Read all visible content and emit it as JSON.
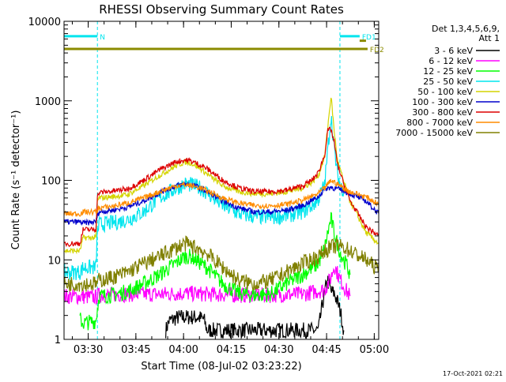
{
  "footer": {
    "date_stamp": "17-Oct-2021 02:21"
  },
  "chart_data": {
    "type": "line",
    "title": "RHESSI Observing Summary Count Rates",
    "xlabel": "Start Time (08-Jul-02 03:23:22)",
    "ylabel": "Count Rate (s⁻¹ detector⁻¹)",
    "x_unit": "minutes since 03:23:22",
    "xlim": [
      0,
      99
    ],
    "ylim": [
      1,
      10000
    ],
    "y_scale": "log",
    "x_ticks": [
      {
        "x": 7.6,
        "label": "03:30"
      },
      {
        "x": 22.6,
        "label": "03:45"
      },
      {
        "x": 37.6,
        "label": "04:00"
      },
      {
        "x": 52.6,
        "label": "04:15"
      },
      {
        "x": 67.6,
        "label": "04:30"
      },
      {
        "x": 82.6,
        "label": "04:45"
      },
      {
        "x": 97.6,
        "label": "05:00"
      }
    ],
    "y_ticks": [
      {
        "y": 1,
        "label": "1"
      },
      {
        "y": 10,
        "label": "10"
      },
      {
        "y": 100,
        "label": "100"
      },
      {
        "y": 1000,
        "label": "1000"
      },
      {
        "y": 10000,
        "label": "10000"
      }
    ],
    "legend": {
      "placement": "right",
      "header": [
        "Det 1,3,4,5,6,9,",
        "Att 1"
      ]
    },
    "eclipse_intervals": [
      [
        0,
        10.5
      ],
      [
        86.8,
        99
      ]
    ],
    "flag_bars": [
      {
        "label": "N",
        "x": [
          0,
          10.5
        ],
        "y": 6500,
        "color": "#00e5ee"
      },
      {
        "label": "FD1",
        "x": [
          86.8,
          93
        ],
        "y": 6500,
        "color": "#00e5ee"
      },
      {
        "label": "",
        "x": [
          93,
          95
        ],
        "y": 5700,
        "color": "#8b8b00"
      },
      {
        "label": "FD2",
        "x": [
          0,
          95.5
        ],
        "y": 4500,
        "color": "#8b8b00"
      }
    ],
    "series": [
      {
        "name": "3 - 6 keV",
        "color": "#000000",
        "x": [
          32,
          33,
          36,
          38,
          40,
          42,
          44,
          45,
          80,
          81,
          82,
          83,
          84,
          85,
          86,
          87,
          88
        ],
        "y": [
          1.3,
          1.7,
          1.9,
          1.9,
          1.9,
          1.9,
          1.8,
          1.3,
          1.3,
          2.3,
          4.0,
          5.5,
          4.0,
          3.8,
          3.0,
          2.2,
          1.3
        ]
      },
      {
        "name": "6 - 12 keV",
        "color": "#ff00ff",
        "x": [
          0,
          10,
          11,
          20,
          30,
          38,
          45,
          55,
          65,
          75,
          82,
          84,
          85,
          87,
          89,
          90
        ],
        "y": [
          3.5,
          3.4,
          3.6,
          3.7,
          3.7,
          3.8,
          3.7,
          3.6,
          3.6,
          3.7,
          4.2,
          6.0,
          8.5,
          5.5,
          4.0,
          3.5
        ]
      },
      {
        "name": "12 - 25 keV",
        "color": "#00ff00",
        "x": [
          5,
          6,
          10,
          11,
          15,
          20,
          25,
          30,
          35,
          38,
          40,
          45,
          50,
          55,
          60,
          65,
          70,
          75,
          80,
          82,
          83,
          84,
          85,
          86,
          87,
          88,
          89,
          90
        ],
        "y": [
          1.8,
          1.6,
          1.7,
          3.5,
          3.6,
          4.0,
          5.0,
          6.5,
          9.0,
          11.0,
          11.0,
          8.0,
          5.0,
          3.8,
          3.6,
          3.7,
          5.0,
          6.5,
          9.0,
          14.0,
          22.0,
          33.0,
          22.0,
          16.0,
          12.0,
          10.0,
          8.5,
          6.5
        ]
      },
      {
        "name": "25 - 50 keV",
        "color": "#00e5ee",
        "x": [
          0,
          5,
          6,
          10,
          10.5,
          11,
          15,
          20,
          25,
          30,
          35,
          38,
          40,
          43,
          45,
          50,
          55,
          60,
          65,
          70,
          75,
          78,
          80,
          82,
          83,
          84,
          85,
          86,
          87,
          88
        ],
        "y": [
          7,
          7,
          8,
          8,
          22,
          28,
          29,
          32,
          40,
          60,
          78,
          90,
          88,
          80,
          70,
          48,
          38,
          35,
          34,
          36,
          40,
          48,
          58,
          90,
          250,
          650,
          250,
          120,
          85,
          75
        ]
      },
      {
        "name": "50 - 100 keV",
        "color": "#d4d400",
        "x": [
          0,
          5,
          6,
          10,
          10.5,
          11,
          15,
          20,
          25,
          30,
          35,
          38,
          40,
          43,
          45,
          50,
          55,
          60,
          65,
          70,
          75,
          78,
          80,
          82,
          83,
          84,
          85,
          86,
          88,
          90,
          95,
          99
        ],
        "y": [
          13,
          13,
          19,
          19,
          55,
          60,
          62,
          66,
          85,
          115,
          150,
          170,
          165,
          140,
          120,
          85,
          72,
          68,
          68,
          72,
          80,
          95,
          115,
          200,
          480,
          1150,
          420,
          180,
          95,
          55,
          22,
          16
        ]
      },
      {
        "name": "100 - 300 keV",
        "color": "#0000cc",
        "x": [
          0,
          5,
          6,
          10,
          10.5,
          11,
          15,
          20,
          25,
          30,
          35,
          38,
          40,
          43,
          45,
          50,
          55,
          60,
          65,
          70,
          75,
          80,
          82,
          84,
          86,
          88,
          90,
          95,
          99
        ],
        "y": [
          30,
          30,
          29,
          30,
          36,
          40,
          42,
          46,
          55,
          70,
          85,
          90,
          88,
          80,
          72,
          55,
          45,
          40,
          40,
          42,
          48,
          62,
          78,
          82,
          78,
          74,
          68,
          55,
          38
        ]
      },
      {
        "name": "300 - 800 keV",
        "color": "#dd0000",
        "x": [
          0,
          5,
          6,
          10,
          10.5,
          11,
          15,
          20,
          25,
          30,
          35,
          38,
          40,
          43,
          45,
          50,
          55,
          60,
          65,
          70,
          75,
          78,
          80,
          82,
          83,
          84,
          85,
          86,
          88,
          90,
          95,
          99
        ],
        "y": [
          16,
          16,
          24,
          24,
          62,
          70,
          73,
          78,
          100,
          135,
          170,
          180,
          175,
          155,
          140,
          100,
          80,
          72,
          72,
          75,
          85,
          100,
          125,
          210,
          420,
          440,
          300,
          160,
          90,
          55,
          26,
          20
        ]
      },
      {
        "name": "800 - 7000 keV",
        "color": "#ff8c00",
        "x": [
          0,
          5,
          6,
          10,
          10.5,
          11,
          15,
          20,
          25,
          30,
          35,
          38,
          40,
          43,
          45,
          50,
          55,
          60,
          65,
          70,
          75,
          80,
          82,
          84,
          86,
          88,
          90,
          95,
          99
        ],
        "y": [
          38,
          38,
          40,
          40,
          42,
          45,
          47,
          52,
          60,
          72,
          85,
          88,
          86,
          80,
          74,
          60,
          52,
          48,
          48,
          50,
          56,
          68,
          80,
          100,
          90,
          80,
          72,
          62,
          50
        ]
      },
      {
        "name": "7000 - 15000 keV",
        "color": "#808000",
        "x": [
          0,
          10,
          11,
          15,
          20,
          25,
          30,
          35,
          38,
          40,
          42,
          45,
          50,
          55,
          60,
          65,
          70,
          75,
          80,
          82,
          84,
          86,
          88,
          90,
          95,
          99
        ],
        "y": [
          5.0,
          5.0,
          5.5,
          6.0,
          7.0,
          9.0,
          11.0,
          14.0,
          16.0,
          15.0,
          14.0,
          12.0,
          8.0,
          5.5,
          5.0,
          5.5,
          7.0,
          9.0,
          11.0,
          13.0,
          14.5,
          15.0,
          14.5,
          13.0,
          10.0,
          7.5
        ]
      }
    ]
  }
}
